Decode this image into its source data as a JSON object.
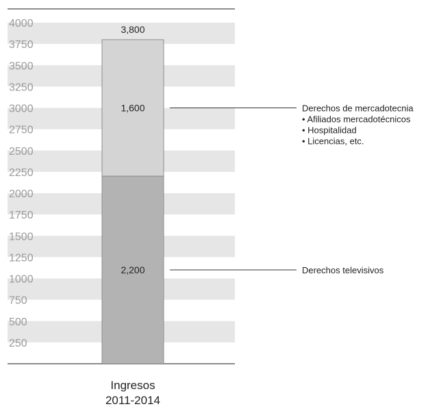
{
  "chart_data": {
    "type": "bar",
    "stacked": true,
    "ylim": [
      0,
      4000
    ],
    "y_ticks": [
      250,
      500,
      750,
      1000,
      1250,
      1500,
      1750,
      2000,
      2250,
      2500,
      2750,
      3000,
      3250,
      3500,
      3750,
      4000
    ],
    "category_lines": [
      "Ingresos",
      "2011-2014"
    ],
    "total_label": "3,800",
    "total": 3800,
    "segments": [
      {
        "value": 2200,
        "label": "2,200",
        "color": "#b3b3b3",
        "annotation": [
          "Derechos televisivos"
        ]
      },
      {
        "value": 1600,
        "label": "1,600",
        "color": "#d4d4d4",
        "annotation": [
          "Derechos de mercadotecnia",
          "• Afiliados mercadotécnicos",
          "• Hospitalidad",
          "• Licencias, etc."
        ]
      }
    ],
    "grid": true,
    "colors": {
      "band": "#e6e6e6",
      "axis_line": "#8c8c8c",
      "bar_border": "#8c8c8c",
      "tick_text": "#9a9a9a"
    }
  }
}
